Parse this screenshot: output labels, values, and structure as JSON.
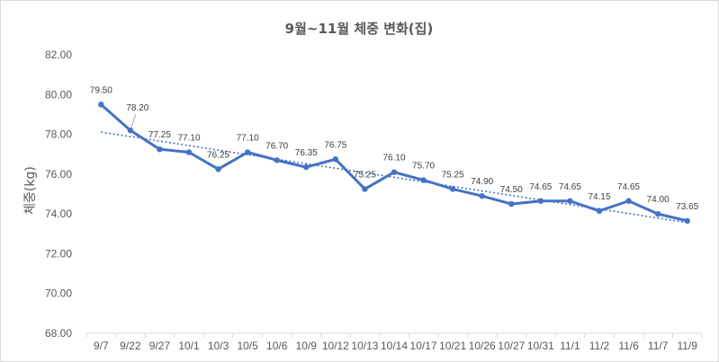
{
  "chart_data": {
    "type": "line",
    "title": "9월~11월 체중 변화(집)",
    "xlabel": "",
    "ylabel": "체중(kg)",
    "categories": [
      "9/7",
      "9/22",
      "9/27",
      "10/1",
      "10/3",
      "10/5",
      "10/6",
      "10/9",
      "10/12",
      "10/13",
      "10/14",
      "10/17",
      "10/21",
      "10/26",
      "10/27",
      "10/31",
      "11/1",
      "11/2",
      "11/6",
      "11/7",
      "11/9"
    ],
    "series": [
      {
        "values": [
          79.5,
          78.2,
          77.25,
          77.1,
          76.25,
          77.1,
          76.7,
          76.35,
          76.75,
          75.25,
          76.1,
          75.7,
          75.25,
          74.9,
          74.5,
          74.65,
          74.65,
          74.15,
          74.65,
          74.0,
          73.65
        ],
        "labels": [
          "79.50",
          "78.20",
          "77.25",
          "77.10",
          "76.25",
          "77.10",
          "76.70",
          "76.35",
          "76.75",
          "75.25",
          "76.10",
          "75.70",
          "75.25",
          "74.90",
          "74.50",
          "74.65",
          "74.65",
          "74.15",
          "74.65",
          "74.00",
          "73.65"
        ]
      }
    ],
    "yticks": [
      "68.00",
      "70.00",
      "72.00",
      "74.00",
      "76.00",
      "78.00",
      "80.00",
      "82.00"
    ],
    "ylim": [
      68,
      82
    ],
    "trendline": "linear",
    "grid": false,
    "legend": "none",
    "colors": {
      "line": "#4472c4",
      "trend": "#4472c4",
      "axis": "#d9d9d9",
      "text": "#595959"
    }
  }
}
